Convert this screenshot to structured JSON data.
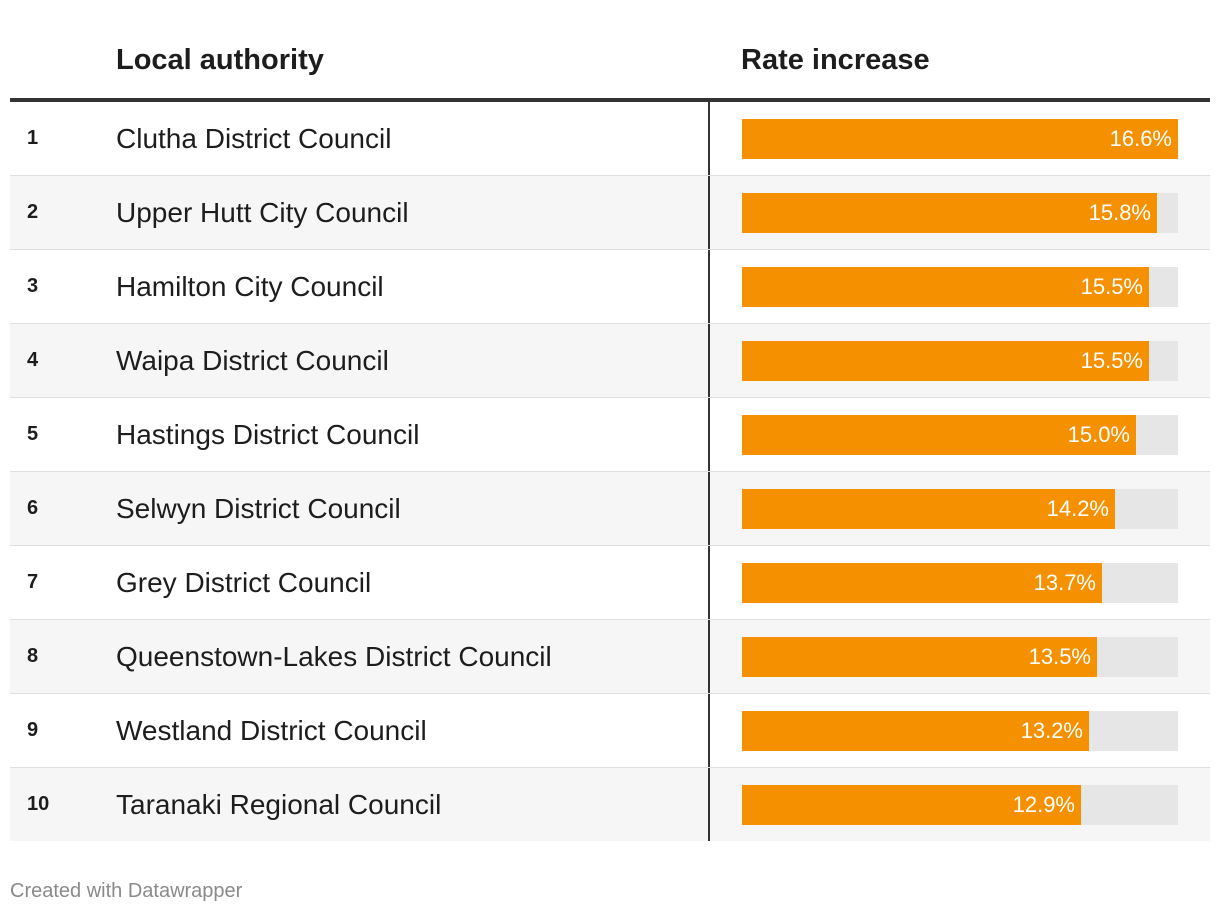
{
  "chart_data": {
    "type": "table",
    "columns": [
      "Local authority",
      "Rate increase"
    ],
    "rows": [
      {
        "rank": "1",
        "name": "Clutha District Council",
        "value": 16.6,
        "label": "16.6%"
      },
      {
        "rank": "2",
        "name": "Upper Hutt City Council",
        "value": 15.8,
        "label": "15.8%"
      },
      {
        "rank": "3",
        "name": "Hamilton City Council",
        "value": 15.5,
        "label": "15.5%"
      },
      {
        "rank": "4",
        "name": "Waipa District Council",
        "value": 15.5,
        "label": "15.5%"
      },
      {
        "rank": "5",
        "name": "Hastings District Council",
        "value": 15.0,
        "label": "15.0%"
      },
      {
        "rank": "6",
        "name": "Selwyn District Council",
        "value": 14.2,
        "label": "14.2%"
      },
      {
        "rank": "7",
        "name": "Grey District Council",
        "value": 13.7,
        "label": "13.7%"
      },
      {
        "rank": "8",
        "name": "Queenstown-Lakes District Council",
        "value": 13.5,
        "label": "13.5%"
      },
      {
        "rank": "9",
        "name": "Westland District Council",
        "value": 13.2,
        "label": "13.2%"
      },
      {
        "rank": "10",
        "name": "Taranaki Regional Council",
        "value": 12.9,
        "label": "12.9%"
      }
    ],
    "bar_max": 16.6,
    "bar_color": "#f59000",
    "track_color": "#e6e6e6"
  },
  "footer": {
    "credit": "Created with Datawrapper"
  }
}
